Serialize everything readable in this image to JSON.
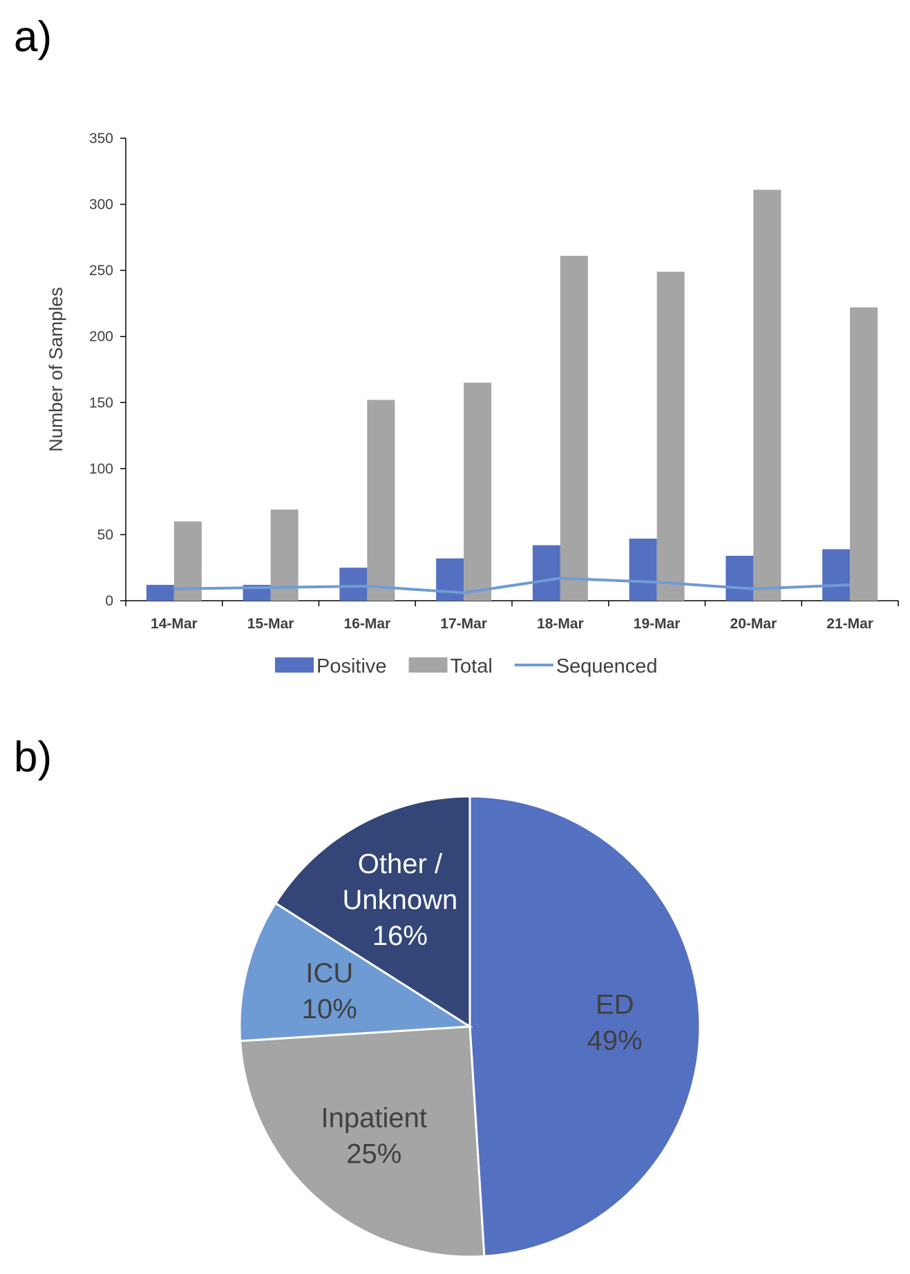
{
  "panels": {
    "a": "a)",
    "b": "b)"
  },
  "colors": {
    "positive": "#5470c1",
    "total": "#a5a5a5",
    "sequenced": "#6f9bd4",
    "axis": "#000000",
    "text": "#404040"
  },
  "chart_data": [
    {
      "type": "bar",
      "title": "",
      "xlabel": "",
      "ylabel": "Number of Samples",
      "ylim": [
        0,
        350
      ],
      "yticks": [
        0,
        50,
        100,
        150,
        200,
        250,
        300,
        350
      ],
      "categories": [
        "14-Mar",
        "15-Mar",
        "16-Mar",
        "17-Mar",
        "18-Mar",
        "19-Mar",
        "20-Mar",
        "21-Mar"
      ],
      "series": [
        {
          "name": "Positive",
          "kind": "bar",
          "color": "#5470c1",
          "values": [
            12,
            12,
            25,
            32,
            42,
            47,
            34,
            39
          ]
        },
        {
          "name": "Total",
          "kind": "bar",
          "color": "#a5a5a5",
          "values": [
            60,
            69,
            152,
            165,
            261,
            249,
            311,
            222
          ]
        },
        {
          "name": "Sequenced",
          "kind": "line",
          "color": "#6f9bd4",
          "values": [
            9,
            10,
            11,
            6,
            17,
            14,
            9,
            12
          ]
        }
      ],
      "legend": "bottom",
      "grid": false
    },
    {
      "type": "pie",
      "slices": [
        {
          "name": "ED",
          "value": 49,
          "label": "49%",
          "color": "#5470c1",
          "text_color": "#404040"
        },
        {
          "name": "Inpatient",
          "value": 25,
          "label": "25%",
          "color": "#a5a5a5",
          "text_color": "#404040"
        },
        {
          "name": "ICU",
          "value": 10,
          "label": "10%",
          "color": "#6f9bd4",
          "text_color": "#404040"
        },
        {
          "name": "Other / Unknown",
          "name_lines": [
            "Other /",
            "Unknown"
          ],
          "value": 16,
          "label": "16%",
          "color": "#344677",
          "text_color": "#ffffff"
        }
      ]
    }
  ]
}
